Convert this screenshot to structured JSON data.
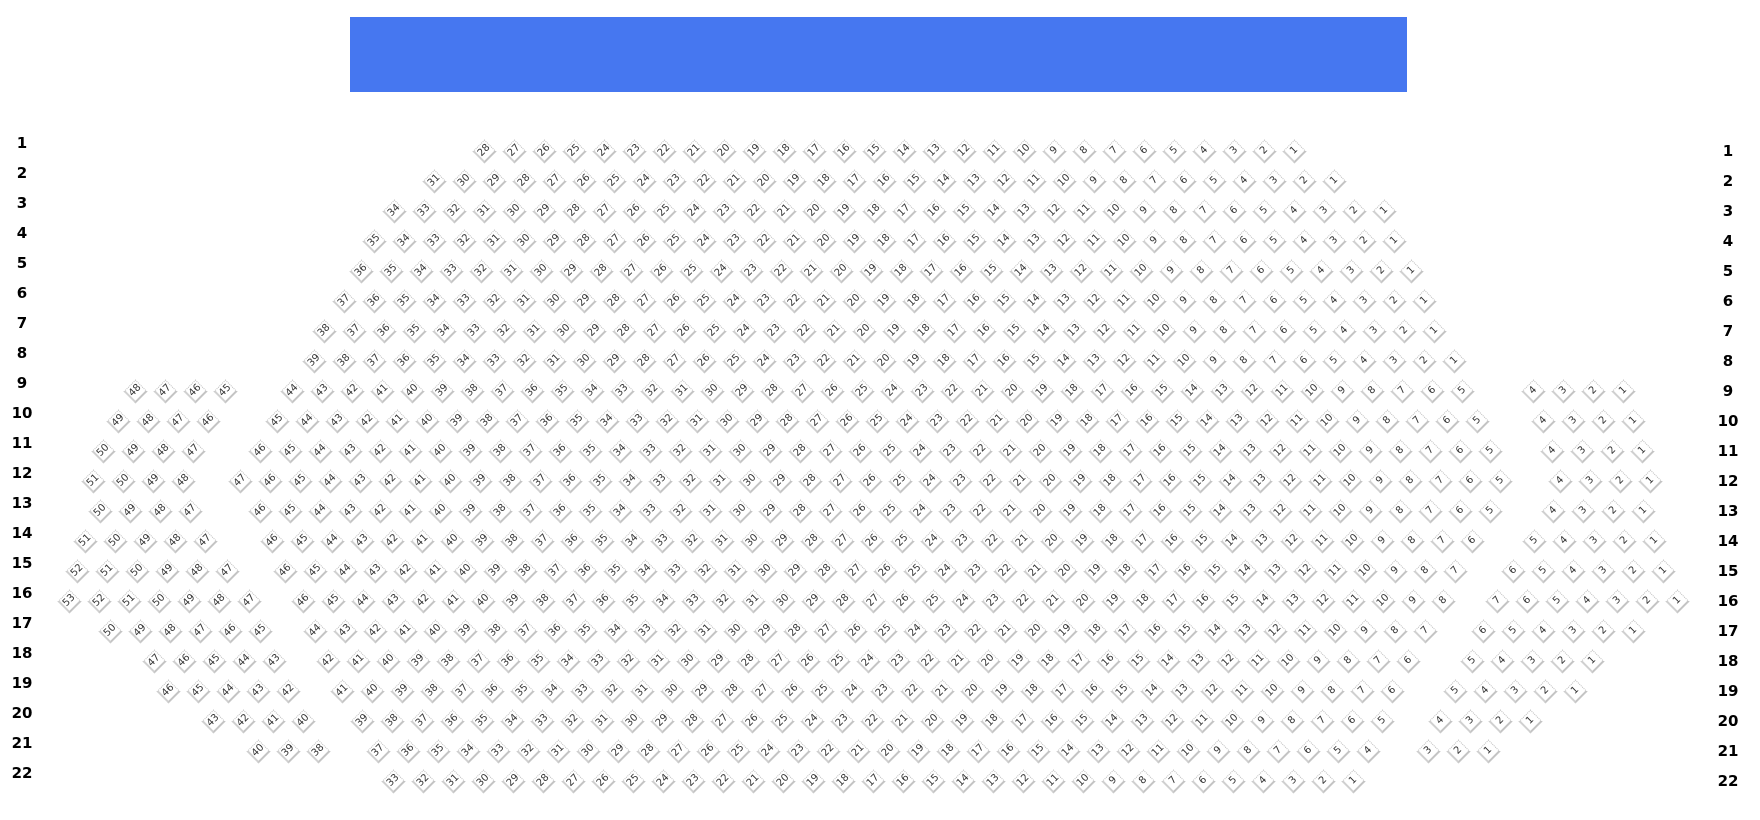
{
  "colors": {
    "stage": "#4677F0",
    "seat_text": "#333333",
    "seat_border": "#BDBDBD"
  },
  "stage": {
    "label": ""
  },
  "rows": [
    {
      "label": "1",
      "sections": [
        [
          28,
          1
        ]
      ]
    },
    {
      "label": "2",
      "sections": [
        [
          31,
          1
        ]
      ]
    },
    {
      "label": "3",
      "sections": [
        [
          34,
          1
        ]
      ]
    },
    {
      "label": "4",
      "sections": [
        [
          35,
          1
        ]
      ]
    },
    {
      "label": "5",
      "sections": [
        [
          36,
          1
        ]
      ]
    },
    {
      "label": "6",
      "sections": [
        [
          37,
          1
        ]
      ]
    },
    {
      "label": "7",
      "sections": [
        [
          38,
          1
        ]
      ]
    },
    {
      "label": "8",
      "sections": [
        [
          39,
          1
        ]
      ]
    },
    {
      "label": "9",
      "sections": [
        [
          48,
          45
        ],
        [
          44,
          5
        ],
        [
          4,
          1
        ]
      ]
    },
    {
      "label": "10",
      "sections": [
        [
          49,
          46
        ],
        [
          45,
          5
        ],
        [
          4,
          1
        ]
      ]
    },
    {
      "label": "11",
      "sections": [
        [
          50,
          47
        ],
        [
          46,
          5
        ],
        [
          4,
          1
        ]
      ]
    },
    {
      "label": "12",
      "sections": [
        [
          51,
          48
        ],
        [
          47,
          5
        ],
        [
          4,
          1
        ]
      ]
    },
    {
      "label": "13",
      "sections": [
        [
          50,
          47
        ],
        [
          46,
          5
        ],
        [
          4,
          1
        ]
      ]
    },
    {
      "label": "14",
      "sections": [
        [
          51,
          47
        ],
        [
          46,
          6
        ],
        [
          5,
          1
        ]
      ]
    },
    {
      "label": "15",
      "sections": [
        [
          52,
          47
        ],
        [
          46,
          7
        ],
        [
          6,
          1
        ]
      ]
    },
    {
      "label": "16",
      "sections": [
        [
          53,
          47
        ],
        [
          46,
          8
        ],
        [
          7,
          1
        ]
      ]
    },
    {
      "label": "17",
      "sections": [
        [
          50,
          45
        ],
        [
          44,
          7
        ],
        [
          6,
          1
        ]
      ]
    },
    {
      "label": "18",
      "sections": [
        [
          47,
          43
        ],
        [
          42,
          6
        ],
        [
          5,
          1
        ]
      ]
    },
    {
      "label": "19",
      "sections": [
        [
          46,
          42
        ],
        [
          41,
          6
        ],
        [
          5,
          1
        ]
      ]
    },
    {
      "label": "20",
      "sections": [
        [
          43,
          40
        ],
        [
          39,
          5
        ],
        [
          4,
          1
        ]
      ]
    },
    {
      "label": "21",
      "sections": [
        [
          40,
          38
        ],
        [
          37,
          4
        ],
        [
          3,
          1
        ]
      ]
    },
    {
      "label": "22",
      "sections": [
        [
          33,
          1
        ]
      ]
    }
  ]
}
